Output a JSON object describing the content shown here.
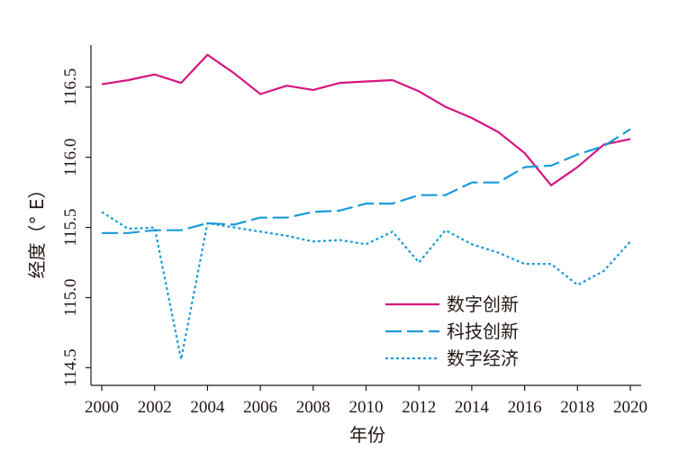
{
  "chart_data": {
    "type": "line",
    "title": "",
    "xlabel": "年份",
    "ylabel": "经度（° E）",
    "x": [
      2000,
      2001,
      2002,
      2003,
      2004,
      2005,
      2006,
      2007,
      2008,
      2009,
      2010,
      2011,
      2012,
      2013,
      2014,
      2015,
      2016,
      2017,
      2018,
      2019,
      2020
    ],
    "xlim": [
      2000,
      2020
    ],
    "ylim": [
      114.4,
      116.8
    ],
    "xticks": [
      "2000",
      "2002",
      "2004",
      "2006",
      "2008",
      "2010",
      "2012",
      "2014",
      "2016",
      "2018",
      "2020"
    ],
    "yticks": [
      "114.5",
      "115.0",
      "115.5",
      "116.0",
      "116.5"
    ],
    "legend_position": "lower-right",
    "grid": false,
    "series": [
      {
        "name": "数字创新",
        "color": "#d6157e",
        "style": "solid",
        "values": [
          116.52,
          116.55,
          116.59,
          116.53,
          116.73,
          116.6,
          116.45,
          116.51,
          116.48,
          116.53,
          116.54,
          116.55,
          116.47,
          116.36,
          116.28,
          116.18,
          116.03,
          115.8,
          115.93,
          116.09,
          116.13
        ]
      },
      {
        "name": "科技创新",
        "color": "#1a9bd7",
        "style": "dashed",
        "values": [
          115.46,
          115.46,
          115.48,
          115.48,
          115.53,
          115.52,
          115.57,
          115.57,
          115.61,
          115.62,
          115.67,
          115.67,
          115.73,
          115.73,
          115.82,
          115.82,
          115.93,
          115.94,
          116.02,
          116.08,
          116.2
        ]
      },
      {
        "name": "数字经济",
        "color": "#1a9bd7",
        "style": "dotted",
        "values": [
          115.61,
          115.49,
          115.5,
          114.56,
          115.53,
          115.5,
          115.47,
          115.44,
          115.4,
          115.41,
          115.38,
          115.47,
          115.25,
          115.48,
          115.38,
          115.32,
          115.24,
          115.24,
          115.09,
          115.19,
          115.4
        ]
      }
    ]
  }
}
